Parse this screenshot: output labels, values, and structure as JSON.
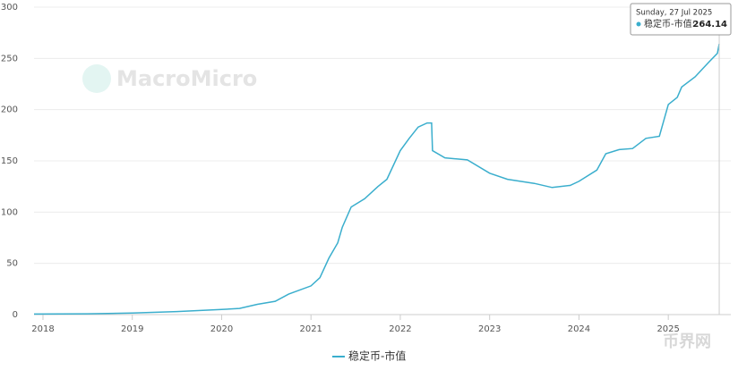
{
  "chart_data": {
    "type": "line",
    "watermark": "MacroMicro",
    "corner_watermark": "币界网",
    "x": [
      2017.9,
      2018.5,
      2019.0,
      2019.5,
      2020.0,
      2020.2,
      2020.4,
      2020.6,
      2020.75,
      2021.0,
      2021.1,
      2021.2,
      2021.3,
      2021.35,
      2021.45,
      2021.6,
      2021.75,
      2021.85,
      2022.0,
      2022.1,
      2022.2,
      2022.3,
      2022.35,
      2022.36,
      2022.5,
      2022.75,
      2023.0,
      2023.2,
      2023.5,
      2023.7,
      2023.9,
      2024.0,
      2024.2,
      2024.3,
      2024.45,
      2024.6,
      2024.75,
      2024.9,
      2025.0,
      2025.1,
      2025.15,
      2025.3,
      2025.45,
      2025.55,
      2025.57
    ],
    "series": [
      {
        "name": "稳定币-市值",
        "color": "#3aaecd",
        "values": [
          0.5,
          0.8,
          1.5,
          3,
          5,
          6,
          10,
          13,
          20,
          28,
          36,
          55,
          70,
          85,
          105,
          113,
          125,
          132,
          160,
          172,
          183,
          187,
          187,
          160,
          153,
          151,
          138,
          132,
          128,
          124,
          126,
          130,
          141,
          157,
          161,
          162,
          172,
          174,
          205,
          212,
          222,
          232,
          246,
          255,
          264.14
        ]
      }
    ],
    "xlim": [
      2017.9,
      2025.7
    ],
    "xticks": [
      2018,
      2019,
      2020,
      2021,
      2022,
      2023,
      2024,
      2025
    ],
    "ylim": [
      0,
      300
    ],
    "yticks": [
      0,
      50,
      100,
      150,
      200,
      250,
      300
    ],
    "grid": true,
    "tooltip": {
      "date": "Sunday, 27 Jul 2025",
      "label": "稳定币-市值:"
    }
  }
}
